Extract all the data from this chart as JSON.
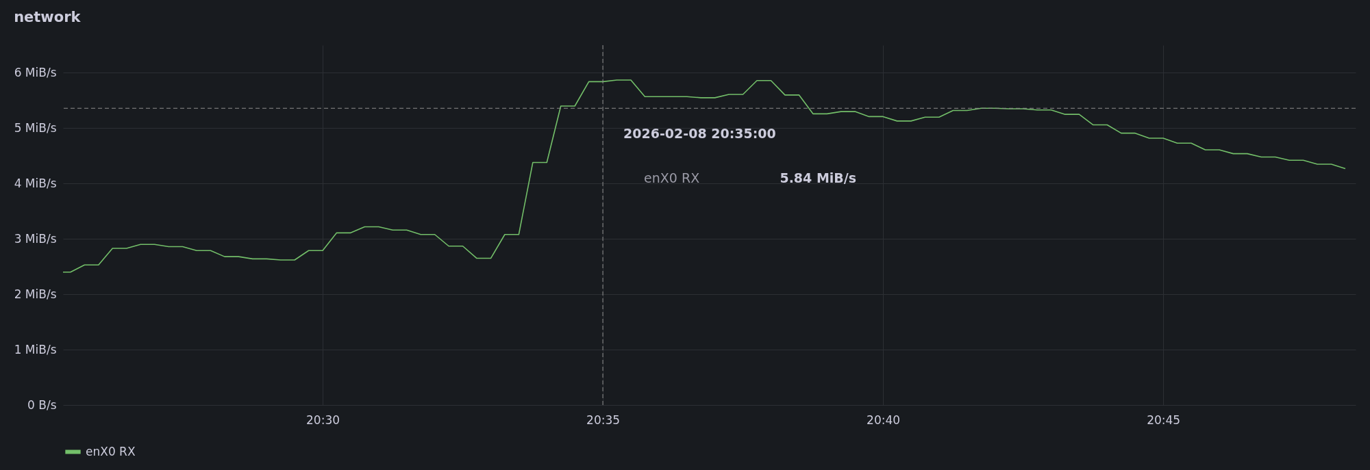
{
  "chart_data": {
    "type": "line",
    "title": "network",
    "x": [
      "2026-02-08T20:25:22",
      "2026-02-08T20:25:30",
      "2026-02-08T20:25:45",
      "2026-02-08T20:26:00",
      "2026-02-08T20:26:15",
      "2026-02-08T20:26:30",
      "2026-02-08T20:26:45",
      "2026-02-08T20:27:00",
      "2026-02-08T20:27:15",
      "2026-02-08T20:27:30",
      "2026-02-08T20:27:45",
      "2026-02-08T20:28:00",
      "2026-02-08T20:28:15",
      "2026-02-08T20:28:30",
      "2026-02-08T20:28:45",
      "2026-02-08T20:29:00",
      "2026-02-08T20:29:15",
      "2026-02-08T20:29:30",
      "2026-02-08T20:29:45",
      "2026-02-08T20:30:00",
      "2026-02-08T20:30:15",
      "2026-02-08T20:30:30",
      "2026-02-08T20:30:45",
      "2026-02-08T20:31:00",
      "2026-02-08T20:31:15",
      "2026-02-08T20:31:30",
      "2026-02-08T20:31:45",
      "2026-02-08T20:32:00",
      "2026-02-08T20:32:15",
      "2026-02-08T20:32:30",
      "2026-02-08T20:32:45",
      "2026-02-08T20:33:00",
      "2026-02-08T20:33:15",
      "2026-02-08T20:33:30",
      "2026-02-08T20:33:45",
      "2026-02-08T20:34:00",
      "2026-02-08T20:34:15",
      "2026-02-08T20:34:30",
      "2026-02-08T20:34:45",
      "2026-02-08T20:35:00",
      "2026-02-08T20:35:15",
      "2026-02-08T20:35:30",
      "2026-02-08T20:35:45",
      "2026-02-08T20:36:00",
      "2026-02-08T20:36:15",
      "2026-02-08T20:36:30",
      "2026-02-08T20:36:45",
      "2026-02-08T20:37:00",
      "2026-02-08T20:37:15",
      "2026-02-08T20:37:30",
      "2026-02-08T20:37:45",
      "2026-02-08T20:38:00",
      "2026-02-08T20:38:15",
      "2026-02-08T20:38:30",
      "2026-02-08T20:38:45",
      "2026-02-08T20:39:00",
      "2026-02-08T20:39:15",
      "2026-02-08T20:39:30",
      "2026-02-08T20:39:45",
      "2026-02-08T20:40:00",
      "2026-02-08T20:40:15",
      "2026-02-08T20:40:30",
      "2026-02-08T20:40:45",
      "2026-02-08T20:41:00",
      "2026-02-08T20:41:15",
      "2026-02-08T20:41:30",
      "2026-02-08T20:41:45",
      "2026-02-08T20:42:00",
      "2026-02-08T20:42:15",
      "2026-02-08T20:42:30",
      "2026-02-08T20:42:45",
      "2026-02-08T20:43:00",
      "2026-02-08T20:43:15",
      "2026-02-08T20:43:30",
      "2026-02-08T20:43:45",
      "2026-02-08T20:44:00",
      "2026-02-08T20:44:15",
      "2026-02-08T20:44:30",
      "2026-02-08T20:44:45",
      "2026-02-08T20:45:00",
      "2026-02-08T20:45:15",
      "2026-02-08T20:45:30",
      "2026-02-08T20:45:45",
      "2026-02-08T20:46:00",
      "2026-02-08T20:46:15",
      "2026-02-08T20:46:30",
      "2026-02-08T20:46:45",
      "2026-02-08T20:47:00",
      "2026-02-08T20:47:15",
      "2026-02-08T20:47:30",
      "2026-02-08T20:47:45",
      "2026-02-08T20:48:00",
      "2026-02-08T20:48:15"
    ],
    "series": [
      {
        "name": "enX0 RX",
        "color": "#73bf69",
        "values": [
          2.4,
          2.4,
          2.53,
          2.53,
          2.83,
          2.83,
          2.9,
          2.9,
          2.86,
          2.86,
          2.79,
          2.79,
          2.68,
          2.68,
          2.64,
          2.64,
          2.62,
          2.62,
          2.79,
          2.79,
          3.11,
          3.11,
          3.22,
          3.22,
          3.16,
          3.16,
          3.08,
          3.08,
          2.87,
          2.87,
          2.65,
          2.65,
          3.08,
          3.08,
          4.38,
          4.38,
          5.4,
          5.4,
          5.84,
          5.84,
          5.87,
          5.87,
          5.57,
          5.57,
          5.57,
          5.57,
          5.55,
          5.55,
          5.61,
          5.61,
          5.86,
          5.86,
          5.6,
          5.6,
          5.26,
          5.26,
          5.3,
          5.3,
          5.21,
          5.21,
          5.13,
          5.13,
          5.2,
          5.2,
          5.32,
          5.32,
          5.36,
          5.36,
          5.35,
          5.35,
          5.33,
          5.33,
          5.25,
          5.25,
          5.06,
          5.06,
          4.91,
          4.91,
          4.82,
          4.82,
          4.73,
          4.73,
          4.61,
          4.61,
          4.54,
          4.54,
          4.48,
          4.48,
          4.42,
          4.42,
          4.35,
          4.35,
          4.27
        ]
      }
    ],
    "xlim": [
      "2026-02-08T20:25:22",
      "2026-02-08T20:48:26"
    ],
    "xticks": [
      {
        "value": "2026-02-08T20:30",
        "label": "20:30"
      },
      {
        "value": "2026-02-08T20:35",
        "label": "20:35"
      },
      {
        "value": "2026-02-08T20:40",
        "label": "20:40"
      },
      {
        "value": "2026-02-08T20:45",
        "label": "20:45"
      }
    ],
    "ylim": [
      0,
      6.5
    ],
    "yticks": [
      {
        "value": 0,
        "label": "0 B/s"
      },
      {
        "value": 1,
        "label": "1 MiB/s"
      },
      {
        "value": 2,
        "label": "2 MiB/s"
      },
      {
        "value": 3,
        "label": "3 MiB/s"
      },
      {
        "value": 4,
        "label": "4 MiB/s"
      },
      {
        "value": 5,
        "label": "5 MiB/s"
      },
      {
        "value": 6,
        "label": "6 MiB/s"
      }
    ],
    "ref_lines": [
      {
        "axis": "x",
        "value": "2026-02-08T20:35",
        "color": "#8e8e8e",
        "line_style": "dashed"
      },
      {
        "axis": "y",
        "value": 5.36,
        "color": "#8e8e8e",
        "line_style": "dashed"
      }
    ],
    "annotations": [
      "2026-02-08 20:35:00",
      "5.84 MiB/s"
    ],
    "grid": true,
    "legend": "bottom"
  }
}
